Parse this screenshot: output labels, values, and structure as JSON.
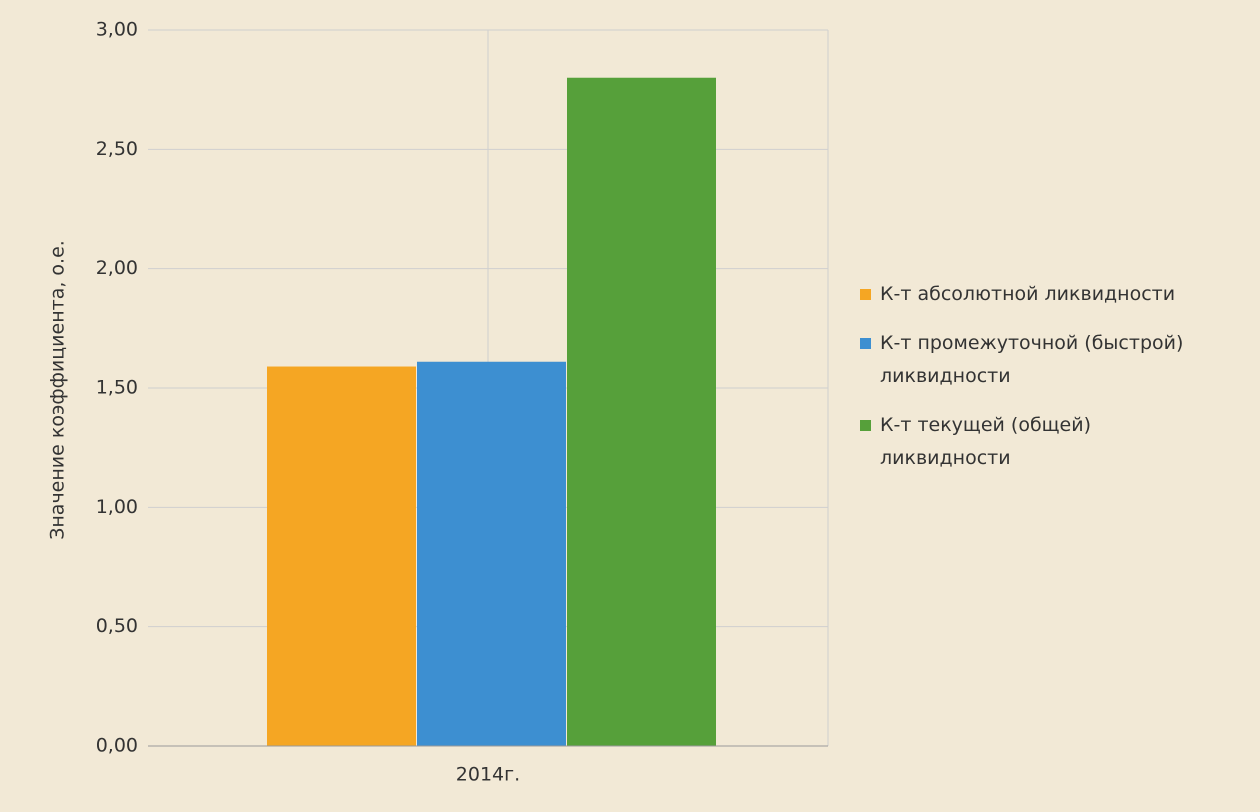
{
  "chart_data": {
    "type": "bar",
    "y_label": "Значение коэффициента, о.е.",
    "categories": [
      "2014г."
    ],
    "series": [
      {
        "name": "К-т абсолютной ликвидности",
        "color": "#f5a623",
        "values": [
          1.59
        ]
      },
      {
        "name": "К-т промежуточной (быстрой) ликвидности",
        "color": "#3d8fd1",
        "values": [
          1.61
        ]
      },
      {
        "name": "К-т текущей (общей) ликвидности",
        "color": "#56a03a",
        "values": [
          2.8
        ]
      }
    ],
    "ylim": [
      0,
      3
    ],
    "yticks": [
      {
        "value": 0,
        "label": "0,00"
      },
      {
        "value": 0.5,
        "label": "0,50"
      },
      {
        "value": 1,
        "label": "1,00"
      },
      {
        "value": 1.5,
        "label": "1,50"
      },
      {
        "value": 2,
        "label": "2,00"
      },
      {
        "value": 2.5,
        "label": "2,50"
      },
      {
        "value": 3,
        "label": "3,00"
      }
    ],
    "grid": true,
    "legend": "right"
  }
}
